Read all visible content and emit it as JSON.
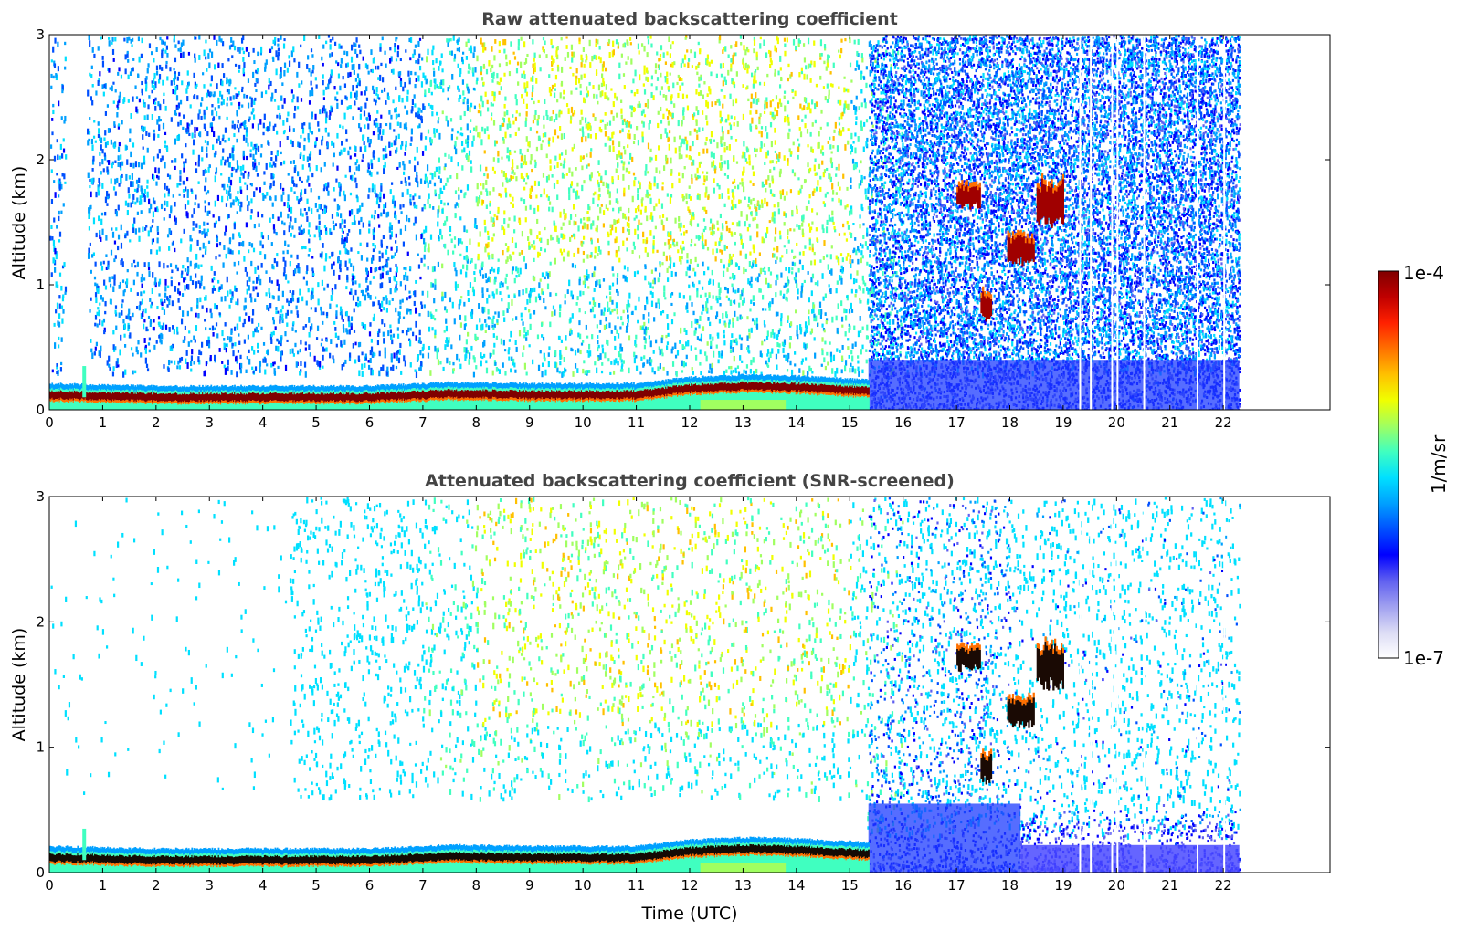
{
  "chart_data": [
    {
      "type": "heatmap",
      "title": "Raw attenuated backscattering coefficient",
      "xlabel": "",
      "ylabel": "Altitude (km)",
      "xlim": [
        0,
        24
      ],
      "ylim": [
        0,
        3
      ],
      "xticks": [
        "0",
        "1",
        "2",
        "3",
        "4",
        "5",
        "6",
        "7",
        "8",
        "9",
        "10",
        "11",
        "12",
        "13",
        "14",
        "15",
        "16",
        "17",
        "18",
        "19",
        "20",
        "21",
        "22"
      ],
      "yticks": [
        "0",
        "1",
        "2",
        "3"
      ],
      "data_end_hour": 22.3,
      "boundary_layer": [
        {
          "t": 0.0,
          "alt": 0.12
        },
        {
          "t": 2.0,
          "alt": 0.1
        },
        {
          "t": 4.0,
          "alt": 0.1
        },
        {
          "t": 6.0,
          "alt": 0.1
        },
        {
          "t": 7.5,
          "alt": 0.13
        },
        {
          "t": 9.0,
          "alt": 0.12
        },
        {
          "t": 11.0,
          "alt": 0.12
        },
        {
          "t": 12.0,
          "alt": 0.17
        },
        {
          "t": 13.0,
          "alt": 0.19
        },
        {
          "t": 14.0,
          "alt": 0.18
        },
        {
          "t": 15.3,
          "alt": 0.15
        }
      ],
      "cloud_features": [
        {
          "t_start": 17.0,
          "t_end": 17.45,
          "alt_low": 1.6,
          "alt_high": 1.8
        },
        {
          "t_start": 17.45,
          "t_end": 17.65,
          "alt_low": 0.7,
          "alt_high": 0.95
        },
        {
          "t_start": 17.95,
          "t_end": 18.45,
          "alt_low": 1.15,
          "alt_high": 1.4
        },
        {
          "t_start": 18.5,
          "t_end": 19.0,
          "alt_low": 1.45,
          "alt_high": 1.85
        }
      ],
      "noisy_region_start_hour": 15.35
    },
    {
      "type": "heatmap",
      "title": "Attenuated backscattering coefficient (SNR-screened)",
      "xlabel": "Time (UTC)",
      "ylabel": "Altitude (km)",
      "xlim": [
        0,
        24
      ],
      "ylim": [
        0,
        3
      ],
      "xticks": [
        "0",
        "1",
        "2",
        "3",
        "4",
        "5",
        "6",
        "7",
        "8",
        "9",
        "10",
        "11",
        "12",
        "13",
        "14",
        "15",
        "16",
        "17",
        "18",
        "19",
        "20",
        "21",
        "22"
      ],
      "yticks": [
        "0",
        "1",
        "2",
        "3"
      ],
      "data_end_hour": 22.3,
      "boundary_layer": [
        {
          "t": 0.0,
          "alt": 0.12
        },
        {
          "t": 2.0,
          "alt": 0.1
        },
        {
          "t": 4.0,
          "alt": 0.1
        },
        {
          "t": 6.0,
          "alt": 0.1
        },
        {
          "t": 7.5,
          "alt": 0.13
        },
        {
          "t": 9.0,
          "alt": 0.12
        },
        {
          "t": 11.0,
          "alt": 0.12
        },
        {
          "t": 12.0,
          "alt": 0.17
        },
        {
          "t": 13.0,
          "alt": 0.19
        },
        {
          "t": 14.0,
          "alt": 0.18
        },
        {
          "t": 15.3,
          "alt": 0.15
        }
      ],
      "cloud_features": [
        {
          "t_start": 17.0,
          "t_end": 17.45,
          "alt_low": 1.6,
          "alt_high": 1.8
        },
        {
          "t_start": 17.45,
          "t_end": 17.65,
          "alt_low": 0.7,
          "alt_high": 0.95
        },
        {
          "t_start": 17.95,
          "t_end": 18.45,
          "alt_low": 1.15,
          "alt_high": 1.4
        },
        {
          "t_start": 18.5,
          "t_end": 19.0,
          "alt_low": 1.45,
          "alt_high": 1.85
        }
      ],
      "noisy_region_start_hour": 15.35
    }
  ],
  "colorbar": {
    "max_label": "1e-4",
    "min_label": "1e-7",
    "unit_label": "1/m/sr",
    "colormap": [
      "#ffffff",
      "#dcdcf5",
      "#a0a0f0",
      "#6060f0",
      "#0000ff",
      "#0050ff",
      "#00a0ff",
      "#00e0ff",
      "#40ffc0",
      "#a0ff60",
      "#f0ff00",
      "#ffc000",
      "#ff7000",
      "#ff2000",
      "#c00000",
      "#800000"
    ]
  }
}
